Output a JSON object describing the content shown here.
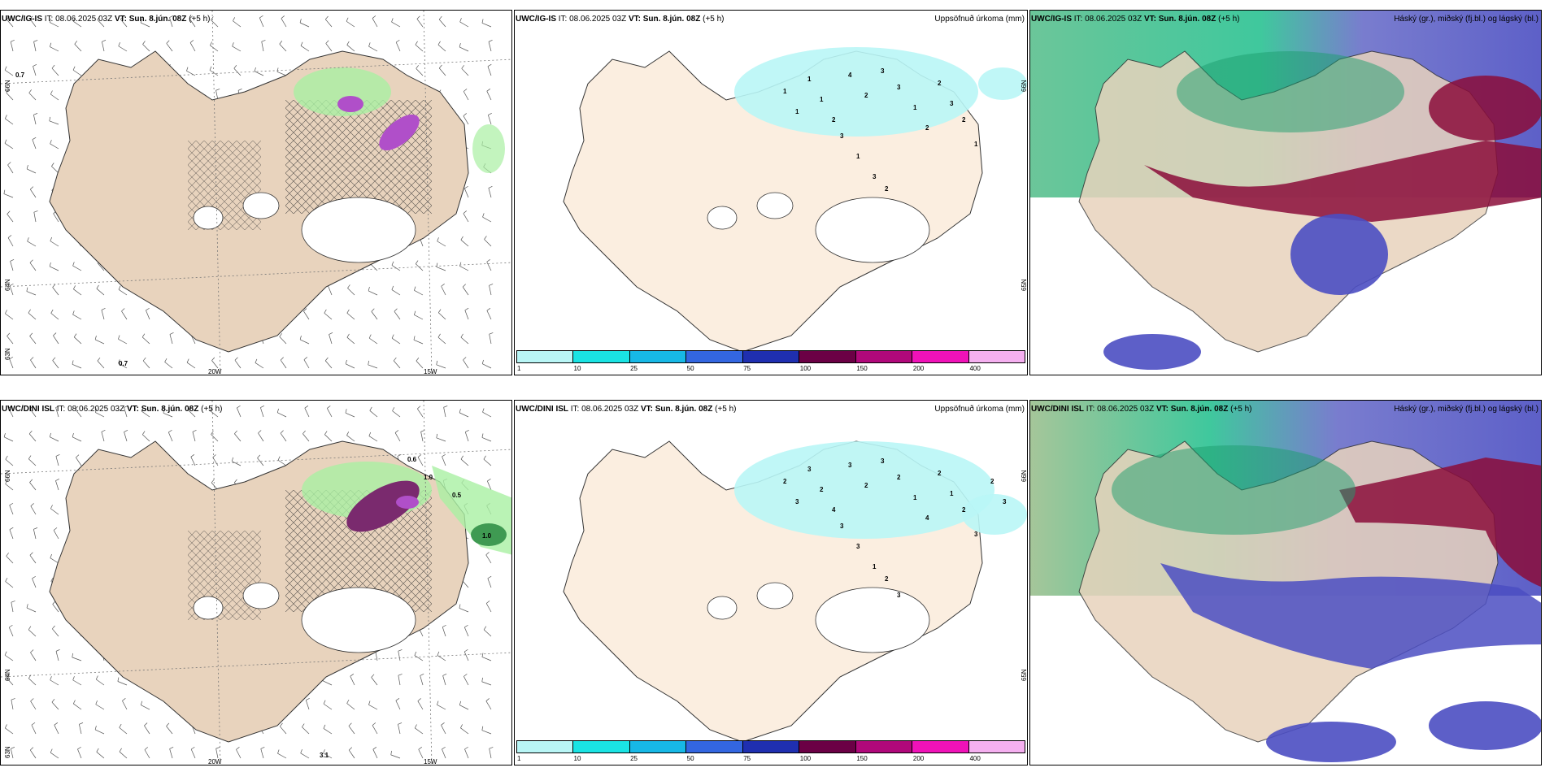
{
  "rows": [
    {
      "model": "UWC/IG-IS",
      "it_label": "IT:",
      "it_value": "08.06.2025 03Z",
      "vt_label": "VT:",
      "vt_value": "Sun. 8.jún. 08Z",
      "lead": "(+5 h)"
    },
    {
      "model": "UWC/DINI ISL",
      "it_label": "IT:",
      "it_value": "08.06.2025 03Z",
      "vt_label": "VT:",
      "vt_value": "Sun. 8.jún. 08Z",
      "lead": "(+5 h)"
    }
  ],
  "precip_title": "Uppsöfnuð úrkoma (mm)",
  "cloud_title": "Háský (gr.), miðský (fj.bl.) og lágský (bl.)",
  "axes": {
    "lon_20": "20W",
    "lon_15": "15W",
    "lat_66": "66N",
    "lat_65": "65N",
    "lat_64": "64N",
    "lat_63": "63N"
  },
  "colorbar": {
    "colors": [
      "#b9f6f6",
      "#1ae3e3",
      "#17b8e6",
      "#3366e0",
      "#1f2fb0",
      "#6b0045",
      "#b0087a",
      "#f012b8",
      "#f5b0f0"
    ],
    "ticks": [
      "1",
      "10",
      "25",
      "50",
      "75",
      "100",
      "150",
      "200",
      "400"
    ]
  },
  "left_labels_row1": [
    "0.7",
    "0.7"
  ],
  "left_labels_row2": [
    "0.6",
    "1.0",
    "0.5",
    "1.0",
    "3.1"
  ],
  "precip_labels_row1": [
    "1",
    "1",
    "1",
    "1",
    "2",
    "4",
    "2",
    "3",
    "3",
    "1",
    "2",
    "2",
    "3",
    "2",
    "1",
    "3",
    "1",
    "3",
    "2"
  ],
  "precip_labels_row2": [
    "2",
    "3",
    "3",
    "2",
    "4",
    "3",
    "2",
    "3",
    "2",
    "1",
    "4",
    "2",
    "1",
    "2",
    "3",
    "3",
    "3",
    "1",
    "2",
    "3",
    "2",
    "3"
  ],
  "colors": {
    "land": "#e8d3bd",
    "land_precip": "#fbeee0",
    "wind": "#555555",
    "green": "#a9f0a3",
    "purple": "#b04fc9"
  }
}
